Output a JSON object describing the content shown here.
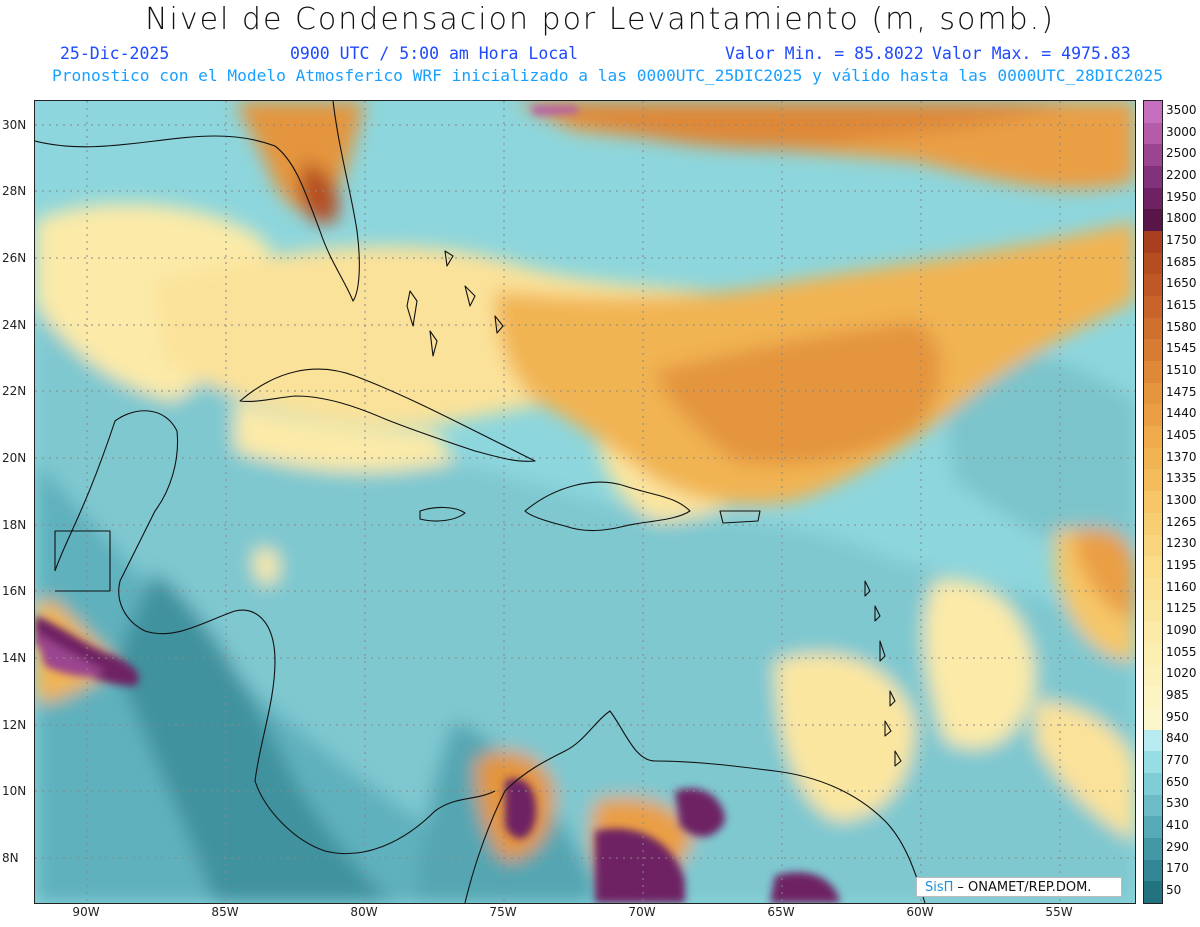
{
  "title": "Nivel de Condensacion por Levantamiento (m, somb.)",
  "date": "25-Dic-2025",
  "time": "0900 UTC / 5:00 am Hora Local",
  "min_value": "Valor Min. = 85.8022",
  "max_value": "Valor Max. = 4975.83",
  "model_info": "Pronostico con el Modelo Atmosferico WRF inicializado a las 0000UTC_25DIC2025 y válido hasta las  0000UTC_28DIC2025",
  "credit": {
    "brand": "SisΠ",
    "text": "– ONAMET/REP.DOM."
  },
  "latitudes": [
    "30N",
    "28N",
    "26N",
    "24N",
    "22N",
    "20N",
    "18N",
    "16N",
    "14N",
    "12N",
    "10N",
    "8N"
  ],
  "longitudes": [
    "90W",
    "85W",
    "80W",
    "75W",
    "70W",
    "65W",
    "60W",
    "55W"
  ],
  "colorbar": {
    "labels": [
      "3500",
      "3000",
      "2500",
      "2200",
      "1950",
      "1800",
      "1750",
      "1685",
      "1650",
      "1615",
      "1580",
      "1545",
      "1510",
      "1475",
      "1440",
      "1405",
      "1370",
      "1335",
      "1300",
      "1265",
      "1230",
      "1195",
      "1160",
      "1125",
      "1090",
      "1055",
      "1020",
      "985",
      "950",
      "840",
      "770",
      "650",
      "530",
      "410",
      "290",
      "170",
      "50"
    ],
    "colors": [
      "#c66fbf",
      "#b45ca8",
      "#9b4590",
      "#82327a",
      "#6e2263",
      "#581548",
      "#a8401f",
      "#b54d22",
      "#bf5826",
      "#c8642a",
      "#d0702e",
      "#d77c33",
      "#de8838",
      "#e4953e",
      "#ea9f44",
      "#eeaa4b",
      "#f1b453",
      "#f4bd5c",
      "#f6c667",
      "#f8ce72",
      "#f9d57e",
      "#fadc89",
      "#fae194",
      "#fae69e",
      "#fbeaa8",
      "#fbeeb1",
      "#fcf1ba",
      "#fcf4c3",
      "#fbf6cc",
      "#b7ebef",
      "#97dde4",
      "#7fcdd6",
      "#6bbcc7",
      "#57aab7",
      "#4398a6",
      "#328594",
      "#23727f"
    ]
  }
}
